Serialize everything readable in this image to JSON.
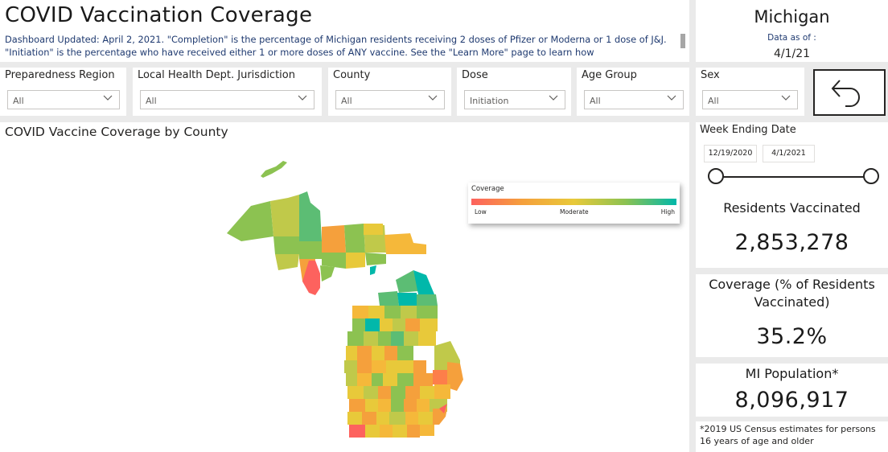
{
  "header": {
    "title": "COVID Vaccination Coverage",
    "description": "Dashboard Updated: April 2, 2021. \"Completion\" is the percentage of Michigan residents receiving 2 doses of Pfizer or Moderna or 1 dose of J&J. \"Initiation\" is the percentage who have received either 1 or more doses of ANY vaccine. See the \"Learn More\" page to learn how"
  },
  "state_card": {
    "name": "Michigan",
    "as_of_label": "Data as of :",
    "as_of_date": "4/1/21"
  },
  "filters": [
    {
      "label": "Preparedness Region",
      "value": "All"
    },
    {
      "label": "Local Health Dept. Jurisdiction",
      "value": "All"
    },
    {
      "label": "County",
      "value": "All"
    },
    {
      "label": "Dose",
      "value": "Initiation"
    },
    {
      "label": "Age Group",
      "value": "All"
    },
    {
      "label": "Sex",
      "value": "All"
    }
  ],
  "back_button": {
    "icon": "back-arrow-icon"
  },
  "map": {
    "title": "COVID Vaccine Coverage by County",
    "legend": {
      "title": "Coverage",
      "low": "Low",
      "moderate": "Moderate",
      "high": "High",
      "colors": [
        "#fd625e",
        "#f5a03c",
        "#e8c93a",
        "#8cc251",
        "#01b8aa"
      ]
    }
  },
  "week_filter": {
    "label": "Week Ending Date",
    "start": "12/19/2020",
    "end": "4/1/2021"
  },
  "kpis": {
    "residents_vaccinated_label": "Residents Vaccinated",
    "residents_vaccinated_value": "2,853,278",
    "coverage_label": "Coverage (% of Residents Vaccinated)",
    "coverage_value": "35.2%",
    "population_label": "MI Population*",
    "population_value": "8,096,917"
  },
  "footnote": "*2019 US Census estimates for persons 16 years of age and older"
}
